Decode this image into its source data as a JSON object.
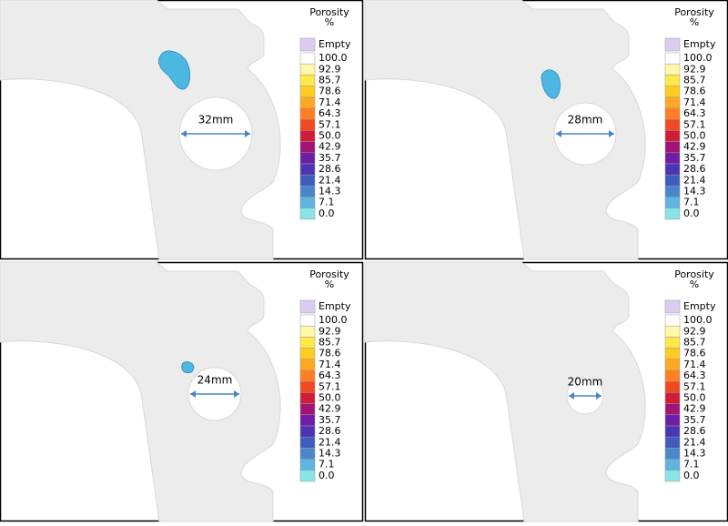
{
  "panels": [
    {
      "size_label": "32mm"
    },
    {
      "size_label": "28mm"
    },
    {
      "size_label": "24mm"
    },
    {
      "size_label": "20mm"
    }
  ],
  "legend": {
    "title": "Porosity",
    "unit": "%",
    "labels": [
      "Empty",
      "100.0",
      "92.9",
      "85.7",
      "78.6",
      "71.4",
      "64.3",
      "57.1",
      "50.0",
      "42.9",
      "35.7",
      "28.6",
      "21.4",
      "14.3",
      "7.1",
      "0.0"
    ],
    "colors": [
      "#dccbf2",
      "#ffffff",
      "#fff8a8",
      "#ffe94a",
      "#ffcc22",
      "#ffa822",
      "#ff7f22",
      "#f04a22",
      "#d01c34",
      "#a21474",
      "#6e1ea6",
      "#4c34b4",
      "#3f5cbc",
      "#4a86cc",
      "#5cb6e0",
      "#8ae4e6"
    ]
  }
}
